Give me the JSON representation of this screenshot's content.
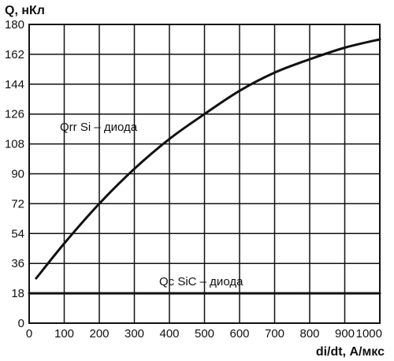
{
  "chart_data": {
    "type": "line",
    "title": "",
    "ylabel": "Q, нКл",
    "xlabel": "di/dt, А/мкс",
    "xlim": [
      0,
      1000
    ],
    "ylim": [
      0,
      180
    ],
    "x_ticks": [
      0,
      100,
      200,
      300,
      400,
      500,
      600,
      700,
      800,
      900,
      1000
    ],
    "y_ticks": [
      0,
      18,
      36,
      54,
      72,
      90,
      108,
      126,
      144,
      162,
      180
    ],
    "grid": true,
    "series": [
      {
        "name": "Qrr Si – диода",
        "x": [
          20,
          100,
          200,
          300,
          400,
          500,
          600,
          700,
          800,
          900,
          1000
        ],
        "y": [
          27,
          48,
          72,
          93,
          111,
          126,
          140,
          151,
          159,
          166,
          171
        ]
      },
      {
        "name": "Qc SiC – диода",
        "x": [
          0,
          1000
        ],
        "y": [
          18,
          18
        ]
      }
    ]
  }
}
